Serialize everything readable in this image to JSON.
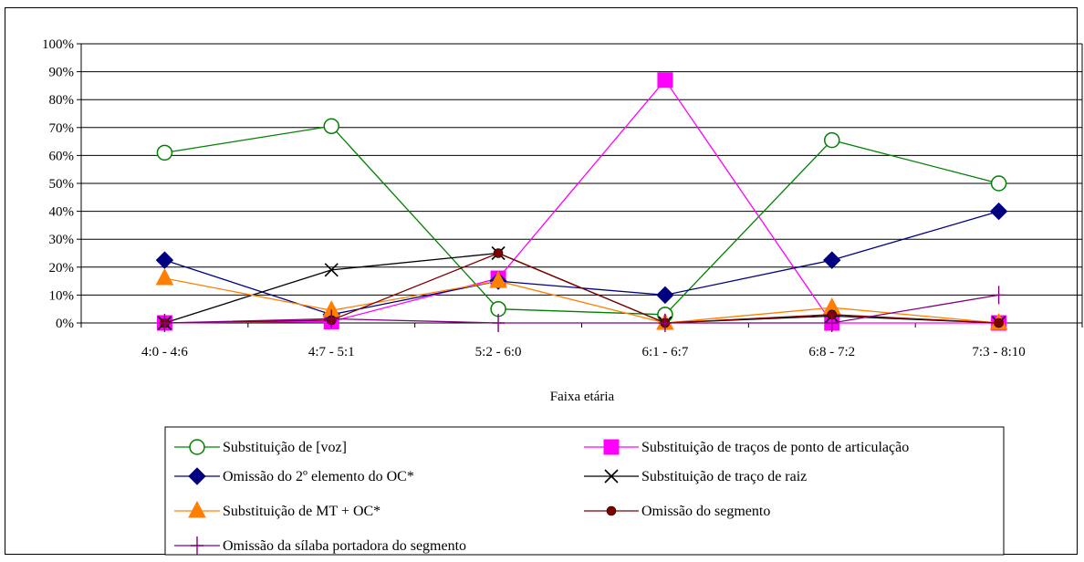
{
  "chart_data": {
    "type": "line",
    "title": "",
    "xlabel": "Faixa etária",
    "ylabel": "",
    "ylim": [
      0,
      100
    ],
    "y_ticks": [
      "0%",
      "10%",
      "20%",
      "30%",
      "40%",
      "50%",
      "60%",
      "70%",
      "80%",
      "90%",
      "100%"
    ],
    "categories": [
      "4:0 - 4:6",
      "4:7 - 5:1",
      "5:2 - 6:0",
      "6:1 - 6:7",
      "6:8 - 7:2",
      "7:3 - 8:10"
    ],
    "grid": true,
    "legend_position": "bottom",
    "series": [
      {
        "name": "Substituição de [voz]",
        "color": "#008000",
        "marker": "circle-open",
        "values": [
          61,
          70.5,
          5,
          3,
          65.5,
          50
        ]
      },
      {
        "name": "Substituição de traços de ponto de articulação",
        "color": "#ff00ff",
        "marker": "square",
        "values": [
          0,
          0.5,
          16,
          87,
          0,
          0
        ]
      },
      {
        "name": "Omissão do 2º elemento do OC*",
        "color": "#000080",
        "marker": "diamond",
        "values": [
          22.5,
          3,
          15,
          10,
          22.5,
          40
        ]
      },
      {
        "name": "Substituição de traço de raiz",
        "color": "#000000",
        "marker": "x",
        "values": [
          0,
          19,
          25,
          0,
          2.5,
          0
        ]
      },
      {
        "name": "Substituição de MT + OC*",
        "color": "#ff8000",
        "marker": "triangle",
        "values": [
          16,
          4.5,
          15,
          0,
          5.5,
          0
        ]
      },
      {
        "name": "Omissão do segmento",
        "color": "#800000",
        "marker": "dot",
        "values": [
          0,
          1,
          25,
          0,
          3,
          0
        ]
      },
      {
        "name": "Omissão da sílaba portadora do segmento",
        "color": "#800080",
        "marker": "plus",
        "values": [
          0,
          1.5,
          0,
          0,
          0,
          10
        ]
      }
    ]
  }
}
